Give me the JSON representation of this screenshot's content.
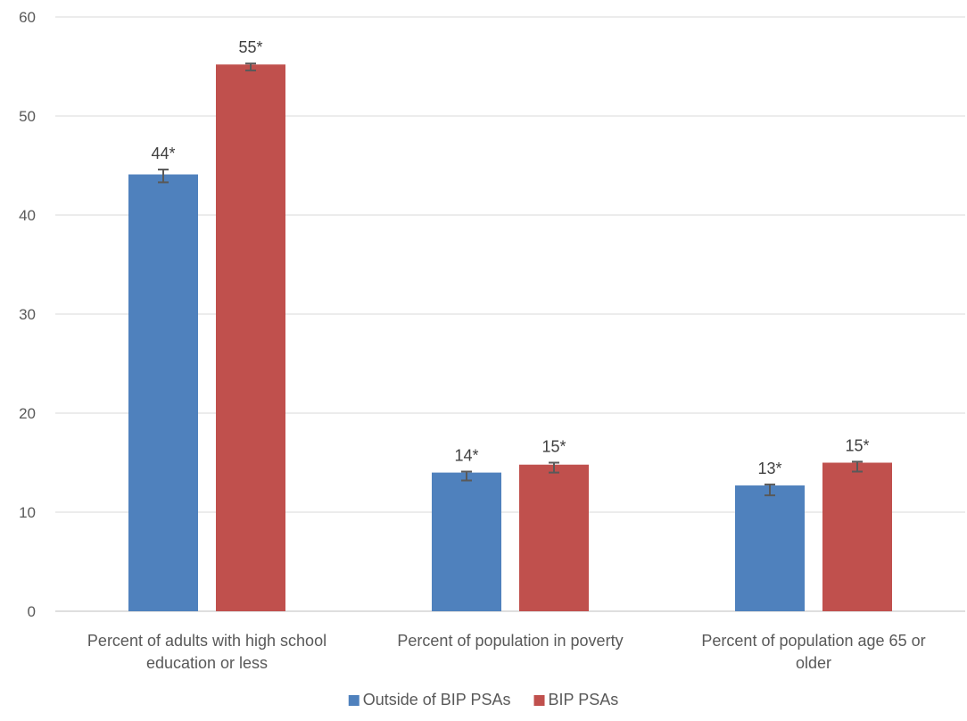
{
  "chart_data": {
    "type": "bar",
    "categories": [
      "Percent of adults with high school education or less",
      "Percent of population in poverty",
      "Percent of population age 65 or older"
    ],
    "category_lines": [
      [
        "Percent of adults with high school",
        "education or less"
      ],
      [
        "Percent of population in poverty"
      ],
      [
        "Percent of population age 65 or",
        "older"
      ]
    ],
    "series": [
      {
        "name": "Outside of BIP PSAs",
        "color": "#4F81BD",
        "values": [
          44.1,
          14.0,
          12.7
        ],
        "error_low": [
          43.3,
          13.2,
          11.7
        ],
        "error_high": [
          44.6,
          14.1,
          12.8
        ],
        "labels": [
          "44*",
          "14*",
          "13*"
        ]
      },
      {
        "name": "BIP PSAs",
        "color": "#C0504D",
        "values": [
          55.2,
          14.8,
          15.0
        ],
        "error_low": [
          54.6,
          14.0,
          14.1
        ],
        "error_high": [
          55.3,
          15.0,
          15.1
        ],
        "labels": [
          "55*",
          "15*",
          "15*"
        ]
      }
    ],
    "ylim": [
      0,
      60
    ],
    "yticks": [
      0,
      10,
      20,
      30,
      40,
      50,
      60
    ],
    "grid": true,
    "legend_position": "bottom",
    "title": "",
    "xlabel": "",
    "ylabel": ""
  }
}
